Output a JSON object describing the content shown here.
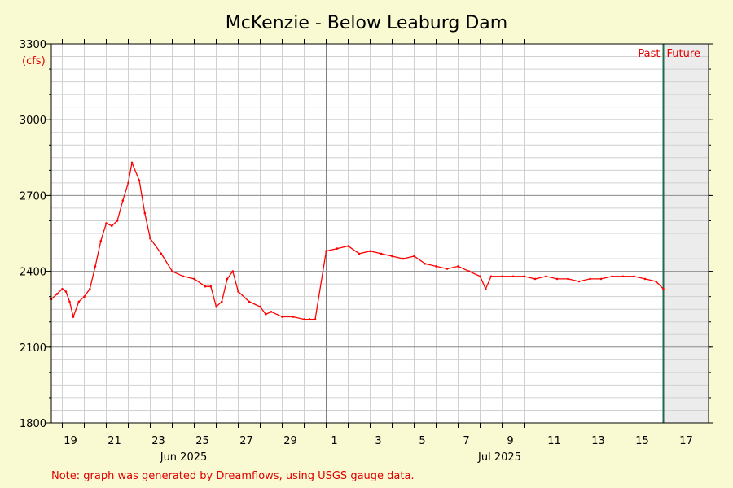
{
  "chart_data": {
    "type": "line",
    "title": "McKenzie - Below Leaburg Dam",
    "y_unit_label": "(cfs)",
    "ylim": [
      1800,
      3300
    ],
    "y_ticks": [
      1800,
      2100,
      2400,
      2700,
      3000,
      3300
    ],
    "x_ticks_day": [
      "19",
      "21",
      "23",
      "25",
      "27",
      "29",
      "1",
      "3",
      "5",
      "7",
      "9",
      "11",
      "13",
      "15",
      "17"
    ],
    "x_month_labels": [
      "Jun 2025",
      "Jul 2025"
    ],
    "past_label": "Past",
    "future_label": "Future",
    "grid": true,
    "series": [
      {
        "color": "#ff0000",
        "x": [
          "2025-06-18 12:00",
          "2025-06-18 18:00",
          "2025-06-19 00:00",
          "2025-06-19 04:00",
          "2025-06-19 08:00",
          "2025-06-19 12:00",
          "2025-06-19 18:00",
          "2025-06-20 00:00",
          "2025-06-20 06:00",
          "2025-06-20 12:00",
          "2025-06-20 18:00",
          "2025-06-21 00:00",
          "2025-06-21 06:00",
          "2025-06-21 12:00",
          "2025-06-21 18:00",
          "2025-06-22 00:00",
          "2025-06-22 04:00",
          "2025-06-22 12:00",
          "2025-06-22 18:00",
          "2025-06-23 00:00",
          "2025-06-23 12:00",
          "2025-06-24 00:00",
          "2025-06-24 12:00",
          "2025-06-25 00:00",
          "2025-06-25 12:00",
          "2025-06-25 18:00",
          "2025-06-26 00:00",
          "2025-06-26 06:00",
          "2025-06-26 12:00",
          "2025-06-26 18:00",
          "2025-06-27 00:00",
          "2025-06-27 12:00",
          "2025-06-28 00:00",
          "2025-06-28 06:00",
          "2025-06-28 12:00",
          "2025-06-29 00:00",
          "2025-06-29 12:00",
          "2025-06-30 00:00",
          "2025-06-30 06:00",
          "2025-06-30 12:00",
          "2025-07-01 00:00",
          "2025-07-01 12:00",
          "2025-07-02 00:00",
          "2025-07-02 12:00",
          "2025-07-03 00:00",
          "2025-07-03 12:00",
          "2025-07-04 00:00",
          "2025-07-04 12:00",
          "2025-07-05 00:00",
          "2025-07-05 12:00",
          "2025-07-06 00:00",
          "2025-07-06 12:00",
          "2025-07-07 00:00",
          "2025-07-07 12:00",
          "2025-07-08 00:00",
          "2025-07-08 06:00",
          "2025-07-08 12:00",
          "2025-07-09 00:00",
          "2025-07-09 12:00",
          "2025-07-10 00:00",
          "2025-07-10 12:00",
          "2025-07-11 00:00",
          "2025-07-11 12:00",
          "2025-07-12 00:00",
          "2025-07-12 12:00",
          "2025-07-13 00:00",
          "2025-07-13 12:00",
          "2025-07-14 00:00",
          "2025-07-14 12:00",
          "2025-07-15 00:00",
          "2025-07-15 12:00",
          "2025-07-16 00:00",
          "2025-07-16 08:00"
        ],
        "y": [
          2290,
          2310,
          2330,
          2320,
          2280,
          2220,
          2280,
          2300,
          2330,
          2420,
          2520,
          2590,
          2580,
          2600,
          2680,
          2750,
          2830,
          2760,
          2630,
          2530,
          2470,
          2400,
          2380,
          2370,
          2340,
          2340,
          2260,
          2280,
          2370,
          2400,
          2320,
          2280,
          2260,
          2230,
          2240,
          2220,
          2220,
          2210,
          2210,
          2210,
          2480,
          2490,
          2500,
          2470,
          2480,
          2470,
          2460,
          2450,
          2460,
          2430,
          2420,
          2410,
          2420,
          2400,
          2380,
          2330,
          2380,
          2380,
          2380,
          2380,
          2370,
          2380,
          2370,
          2370,
          2360,
          2370,
          2370,
          2380,
          2380,
          2380,
          2370,
          2360,
          2330
        ]
      }
    ]
  },
  "note": "Note: graph was generated by Dreamflows, using USGS gauge data."
}
